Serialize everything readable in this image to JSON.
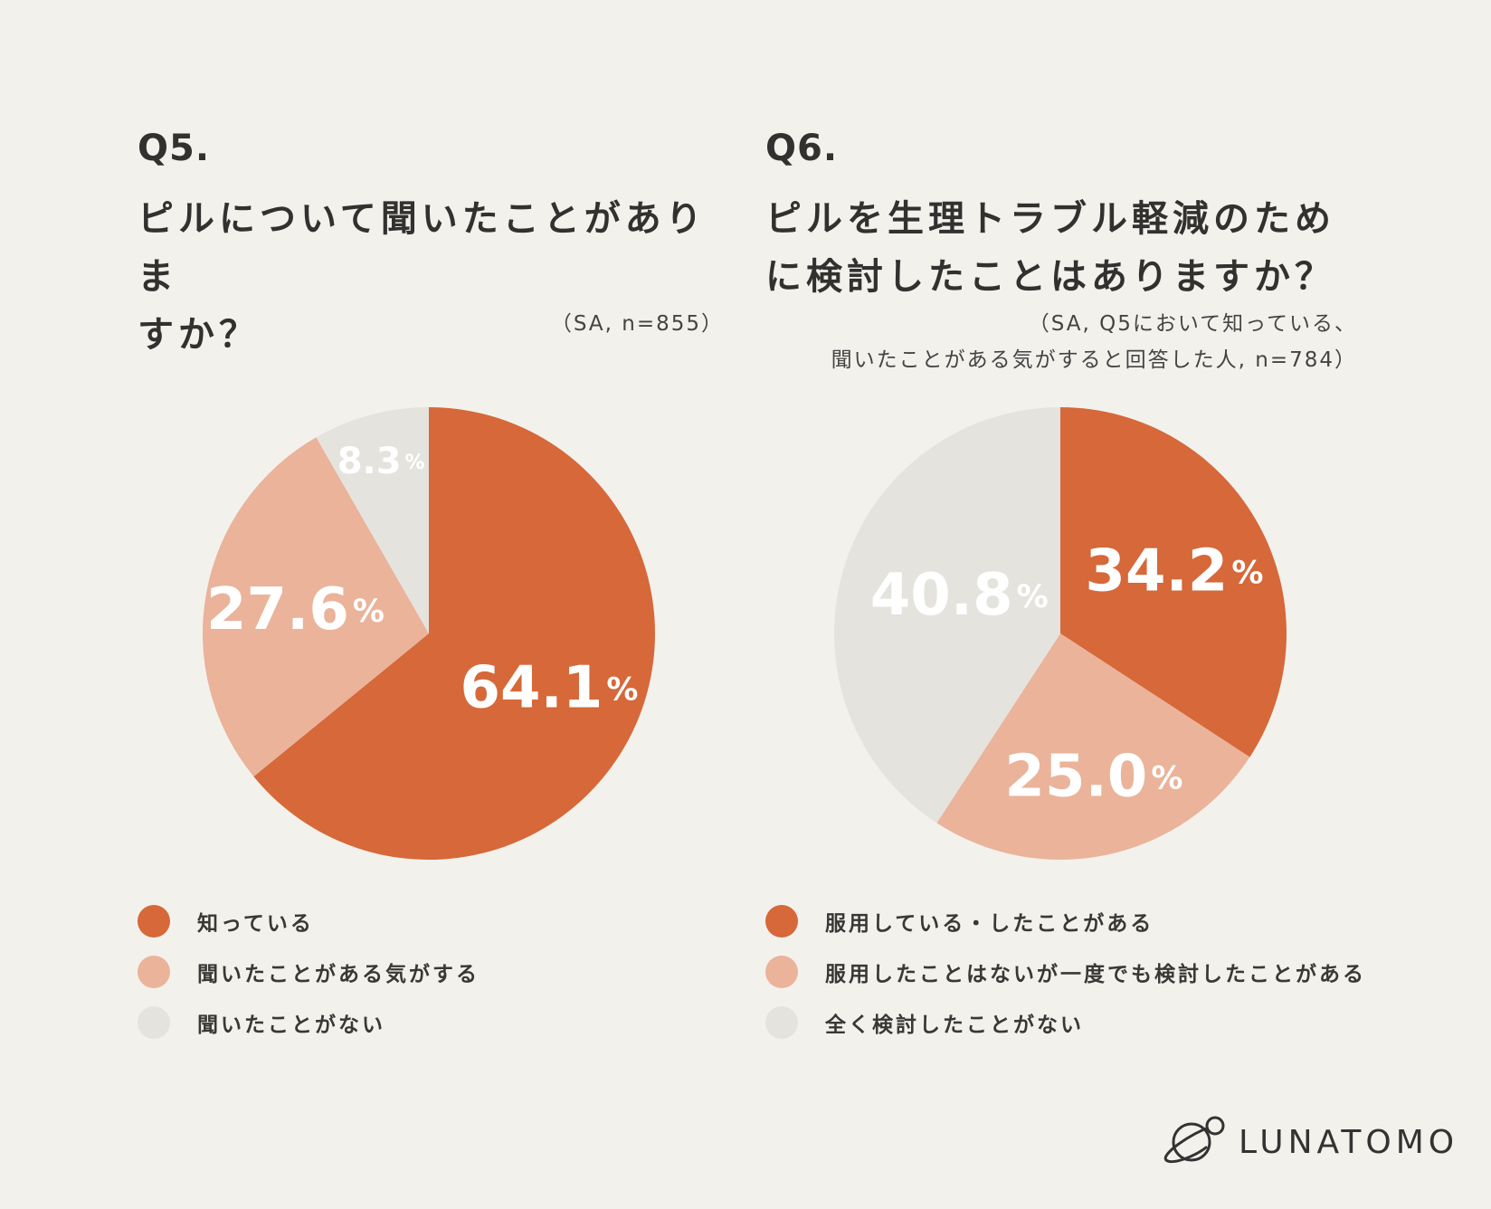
{
  "colors": {
    "background": "#f3f1ec",
    "dark_orange": "#d66839",
    "light_orange": "#eab39a",
    "light_gray": "#e5e3de",
    "text": "#333130"
  },
  "brand": {
    "name": "LUNATOMO",
    "icon": "planet-logo-icon"
  },
  "chart_data": [
    {
      "type": "pie",
      "question_number": "Q5.",
      "title": "ピルについて聞いたことがありますか？",
      "title_lines": [
        "ピルについて聞いたことがありま",
        "すか？"
      ],
      "note": "（SA, n=855）",
      "unit": "%",
      "slices": [
        {
          "label": "知っている",
          "value": 64.1,
          "display": "64.1",
          "color": "#d66839"
        },
        {
          "label": "聞いたことがある気がする",
          "value": 27.6,
          "display": "27.6",
          "color": "#eab39a"
        },
        {
          "label": "聞いたことがない",
          "value": 8.3,
          "display": "8.3",
          "color": "#e5e3de"
        }
      ]
    },
    {
      "type": "pie",
      "question_number": "Q6.",
      "title": "ピルを生理トラブル軽減のために検討したことはありますか？",
      "title_lines": [
        "ピルを生理トラブル軽減のため",
        "に検討したことはありますか？"
      ],
      "note": "（SA, Q5において知っている、\n聞いたことがある気がすると回答した人, n=784）",
      "unit": "%",
      "slices": [
        {
          "label": "服用している・したことがある",
          "value": 34.2,
          "display": "34.2",
          "color": "#d66839"
        },
        {
          "label": "服用したことはないが一度でも検討したことがある",
          "value": 25.0,
          "display": "25.0",
          "color": "#eab39a"
        },
        {
          "label": "全く検討したことがない",
          "value": 40.8,
          "display": "40.8",
          "color": "#e5e3de"
        }
      ]
    }
  ]
}
